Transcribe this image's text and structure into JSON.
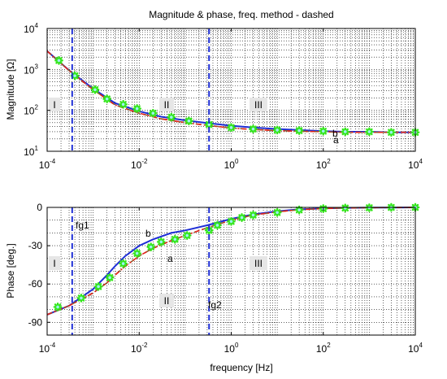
{
  "colors": {
    "frequency_method": "#e2231a",
    "curve_b": "#1f2fd6",
    "curve_a": "#8b5a2b",
    "markers": "#33e61a",
    "marker_edge": "#9cf1f1",
    "boundaries": "#1f2fd6",
    "grid": "#000000"
  },
  "chart_data": [
    {
      "type": "line",
      "title": "Magnitude & phase, freq. method - dashed",
      "ylabel": "Magnitude [Ω]",
      "ylabel_text": "Magnitude [",
      "ylabel_unit": "Ω",
      "ylabel_end": "]",
      "xlabel": "",
      "xscale": "log",
      "yscale": "log",
      "xlim": [
        0.0001,
        10000
      ],
      "ylim": [
        10,
        10000
      ],
      "grid": true,
      "x_ticks": [
        {
          "base": "10",
          "exp": "-4"
        },
        {
          "base": "10",
          "exp": "-2"
        },
        {
          "base": "10",
          "exp": "0"
        },
        {
          "base": "10",
          "exp": "2"
        },
        {
          "base": "10",
          "exp": "4"
        }
      ],
      "y_ticks": [
        {
          "base": "10",
          "exp": "1"
        },
        {
          "base": "10",
          "exp": "2"
        },
        {
          "base": "10",
          "exp": "3"
        },
        {
          "base": "10",
          "exp": "4"
        }
      ],
      "regions": [
        "I",
        "II",
        "III"
      ],
      "curve_labels": [
        "b",
        "a"
      ],
      "vertical_lines_x": [
        0.00035,
        0.33
      ],
      "series": [
        {
          "key": "b",
          "style": "solid",
          "x": [
            0.0001,
            0.0003,
            0.001,
            0.003,
            0.01,
            0.03,
            0.1,
            0.3,
            1,
            3,
            10,
            30,
            100,
            300,
            1000,
            3000,
            10000
          ],
          "y": [
            2800,
            950,
            340,
            150,
            95,
            70,
            57,
            49,
            42,
            38,
            35,
            33,
            31,
            30,
            30,
            29,
            29
          ]
        },
        {
          "key": "a",
          "style": "dashed",
          "x": [
            0.0001,
            0.0003,
            0.001,
            0.003,
            0.01,
            0.03,
            0.1,
            0.3,
            1,
            3,
            10,
            30,
            100,
            300,
            1000,
            3000,
            10000
          ],
          "y": [
            2800,
            940,
            320,
            135,
            85,
            62,
            50,
            43,
            37,
            34,
            32,
            31,
            30,
            29,
            29,
            29,
            29
          ]
        },
        {
          "key": "frequency_method",
          "style": "dashdot",
          "x": [
            0.0001,
            0.0003,
            0.001,
            0.003,
            0.01,
            0.03,
            0.1,
            0.3,
            1,
            3,
            10,
            30,
            100,
            300,
            1000,
            3000,
            10000
          ],
          "y": [
            2800,
            940,
            320,
            135,
            85,
            62,
            50,
            43,
            37,
            34,
            32,
            31,
            30,
            29,
            29,
            29,
            29
          ]
        },
        {
          "key": "markers",
          "style": "markers",
          "x": [
            0.00018,
            0.0004,
            0.0011,
            0.002,
            0.0045,
            0.009,
            0.02,
            0.05,
            0.12,
            0.33,
            1,
            3,
            10,
            30,
            100,
            300,
            1000,
            3000,
            10000
          ],
          "y": [
            1650,
            700,
            320,
            190,
            140,
            110,
            85,
            68,
            55,
            45,
            38,
            35,
            33,
            32,
            31,
            30,
            30,
            29,
            29
          ]
        }
      ]
    },
    {
      "type": "line",
      "title": "",
      "ylabel": "Phase [deg.]",
      "xlabel": "frequency [Hz]",
      "xscale": "log",
      "xlim": [
        0.0001,
        10000
      ],
      "ylim": [
        -100,
        0
      ],
      "grid": true,
      "x_ticks": [
        {
          "base": "10",
          "exp": "-4"
        },
        {
          "base": "10",
          "exp": "-2"
        },
        {
          "base": "10",
          "exp": "0"
        },
        {
          "base": "10",
          "exp": "2"
        },
        {
          "base": "10",
          "exp": "4"
        }
      ],
      "y_ticks": [
        "0",
        "-30",
        "-60",
        "-90"
      ],
      "y_tick_values": [
        0,
        -30,
        -60,
        -90
      ],
      "regions": [
        "I",
        "II",
        "III"
      ],
      "curve_labels": [
        "b",
        "a"
      ],
      "boundary_labels": [
        "fg1",
        "fg2"
      ],
      "vertical_lines_x": [
        0.00035,
        0.33
      ],
      "series": [
        {
          "key": "b",
          "style": "solid",
          "x": [
            0.0001,
            0.0003,
            0.001,
            0.002,
            0.003,
            0.005,
            0.01,
            0.02,
            0.05,
            0.1,
            0.3,
            1,
            3,
            10,
            30,
            100,
            300,
            1000,
            3000,
            10000
          ],
          "y": [
            -84,
            -77,
            -64,
            -53,
            -46,
            -38,
            -30,
            -25,
            -20,
            -18,
            -14,
            -9,
            -5.5,
            -3,
            -1.5,
            -0.8,
            -0.4,
            -0.2,
            -0.1,
            0
          ]
        },
        {
          "key": "a",
          "style": "dashed",
          "x": [
            0.0001,
            0.0003,
            0.001,
            0.002,
            0.003,
            0.005,
            0.01,
            0.02,
            0.05,
            0.1,
            0.3,
            1,
            3,
            10,
            30,
            100,
            300,
            1000,
            3000,
            10000
          ],
          "y": [
            -84,
            -77,
            -67,
            -59,
            -53,
            -46,
            -38,
            -32,
            -26,
            -22,
            -16,
            -10,
            -6,
            -3.5,
            -1.8,
            -0.9,
            -0.4,
            -0.2,
            -0.1,
            0
          ]
        },
        {
          "key": "frequency_method",
          "style": "dashdot",
          "x": [
            0.0001,
            0.0003,
            0.001,
            0.002,
            0.003,
            0.005,
            0.01,
            0.02,
            0.05,
            0.1,
            0.3,
            1,
            3,
            10,
            30,
            100,
            300,
            1000,
            3000,
            10000
          ],
          "y": [
            -84,
            -77,
            -67,
            -59,
            -53,
            -46,
            -38,
            -32,
            -26,
            -22,
            -16,
            -10,
            -6,
            -3.5,
            -1.8,
            -0.9,
            -0.4,
            -0.2,
            -0.1,
            0
          ]
        },
        {
          "key": "markers",
          "style": "markers",
          "x": [
            0.00017,
            0.00055,
            0.0013,
            0.0023,
            0.0045,
            0.009,
            0.018,
            0.03,
            0.06,
            0.11,
            0.33,
            0.5,
            1,
            1.7,
            3,
            10,
            30,
            100,
            300,
            1000,
            3000,
            10000
          ],
          "y": [
            -78,
            -71,
            -62,
            -55,
            -44,
            -36,
            -31,
            -27,
            -25,
            -22,
            -18,
            -14,
            -11,
            -8,
            -6,
            -4,
            -2,
            -1,
            -0.5,
            -0.3,
            0,
            0
          ]
        }
      ]
    }
  ]
}
